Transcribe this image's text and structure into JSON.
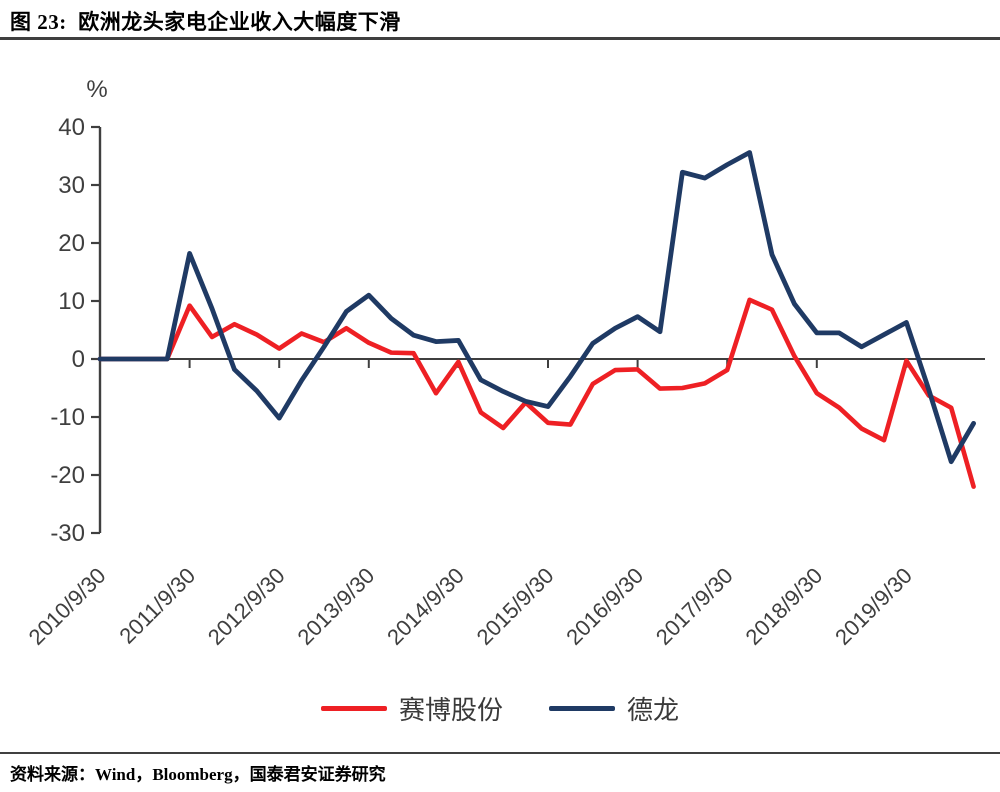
{
  "header": {
    "title": "图 23:  欧洲龙头家电企业收入大幅度下滑"
  },
  "source": "资料来源：Wind，Bloomberg，国泰君安证券研究",
  "chart_data": {
    "type": "line",
    "title": "欧洲龙头家电企业收入大幅度下滑",
    "unit_label": "%",
    "xlabel": "",
    "ylabel": "%",
    "ylim": [
      -30,
      40
    ],
    "yticks": [
      40,
      30,
      20,
      10,
      0,
      -10,
      -20,
      -30
    ],
    "grid": "off",
    "legend_position": "bottom",
    "x": [
      "2010/9/30",
      "2010/12/31",
      "2011/3/31",
      "2011/6/30",
      "2011/9/30",
      "2011/12/31",
      "2012/3/31",
      "2012/6/30",
      "2012/9/30",
      "2012/12/31",
      "2013/3/31",
      "2013/6/30",
      "2013/9/30",
      "2013/12/31",
      "2014/3/31",
      "2014/6/30",
      "2014/9/30",
      "2014/12/31",
      "2015/3/31",
      "2015/6/30",
      "2015/9/30",
      "2015/12/31",
      "2016/3/31",
      "2016/6/30",
      "2016/9/30",
      "2016/12/31",
      "2017/3/31",
      "2017/6/30",
      "2017/9/30",
      "2017/12/31",
      "2018/3/31",
      "2018/6/30",
      "2018/9/30",
      "2018/12/31",
      "2019/3/31",
      "2019/6/30",
      "2019/9/30",
      "2019/12/31",
      "2020/3/31",
      "2020/6/30"
    ],
    "x_tick_labels": [
      "2010/9/30",
      "2011/9/30",
      "2012/9/30",
      "2013/9/30",
      "2014/9/30",
      "2015/9/30",
      "2016/9/30",
      "2017/9/30",
      "2018/9/30",
      "2019/9/30"
    ],
    "x_tick_every": 4,
    "series": [
      {
        "name": "赛博股份",
        "color": "#ee2024",
        "values": [
          0,
          0,
          0,
          0,
          9.2,
          3.8,
          6.0,
          4.2,
          1.8,
          4.4,
          2.9,
          5.3,
          2.8,
          1.1,
          1.0,
          -5.9,
          -0.5,
          -9.2,
          -11.9,
          -7.5,
          -11.0,
          -11.3,
          -4.3,
          -1.9,
          -1.8,
          -5.1,
          -5.0,
          -4.2,
          -1.9,
          10.2,
          8.5,
          0.5,
          -5.9,
          -8.4,
          -12.0,
          -14.0,
          -0.3,
          -6.3,
          -8.4,
          -22.0
        ]
      },
      {
        "name": "德龙",
        "color": "#1f3a64",
        "values": [
          0,
          0,
          0,
          0,
          18.2,
          8.7,
          -1.8,
          -5.5,
          -10.2,
          -3.7,
          2.1,
          8.2,
          11.0,
          7.0,
          4.1,
          3.0,
          3.2,
          -3.6,
          -5.6,
          -7.3,
          -8.2,
          -3.0,
          2.7,
          5.3,
          7.3,
          4.7,
          32.2,
          31.2,
          33.5,
          35.6,
          18.0,
          9.5,
          4.5,
          4.5,
          2.1,
          4.2,
          6.3,
          -5.3,
          -17.7,
          -11.1
        ]
      }
    ],
    "axis_color": "#3f3f3f"
  }
}
